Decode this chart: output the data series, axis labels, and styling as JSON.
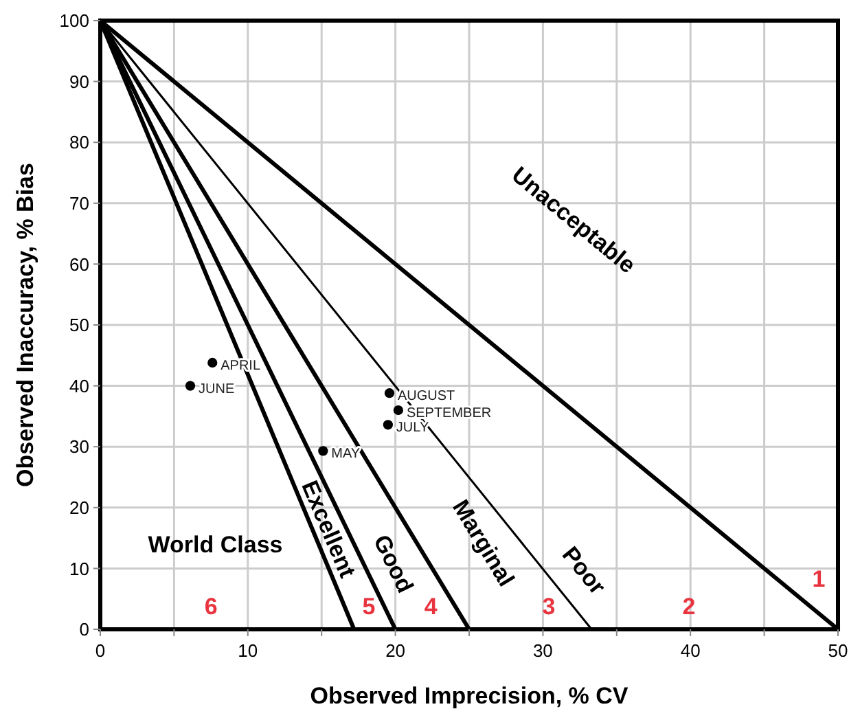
{
  "chart_data": {
    "type": "line",
    "xlabel": "Observed Imprecision, % CV",
    "ylabel": "Observed Inaccuracy, % Bias",
    "xlim": [
      0,
      50
    ],
    "ylim": [
      0,
      100
    ],
    "xticks": [
      0,
      10,
      20,
      30,
      40,
      50
    ],
    "yticks": [
      0,
      10,
      20,
      30,
      40,
      50,
      60,
      70,
      80,
      90,
      100
    ],
    "grid": true,
    "series": [
      {
        "type": "line",
        "color": "#000000",
        "x": [
          0,
          50
        ],
        "values": [
          100,
          0
        ]
      },
      {
        "type": "line",
        "color": "#000000",
        "x": [
          0,
          33.3
        ],
        "values": [
          100,
          0
        ]
      },
      {
        "type": "line",
        "color": "#000000",
        "x": [
          0,
          25
        ],
        "values": [
          100,
          0
        ]
      },
      {
        "type": "line",
        "color": "#000000",
        "x": [
          0,
          20
        ],
        "values": [
          100,
          0
        ]
      },
      {
        "type": "line",
        "color": "#000000",
        "x": [
          0,
          17.2
        ],
        "values": [
          100,
          0
        ]
      },
      {
        "type": "scatter",
        "color": "#000000",
        "marker": "circle",
        "x": [
          7.6,
          6.1,
          19.6,
          20.2,
          19.5,
          15.1
        ],
        "values": [
          43.8,
          40,
          38.8,
          36,
          33.6,
          29.3
        ]
      }
    ],
    "annotations": [
      {
        "text": "APRIL",
        "x": 7.6,
        "y": 43.8
      },
      {
        "text": "JUNE",
        "x": 6.1,
        "y": 40
      },
      {
        "text": "AUGUST",
        "x": 19.6,
        "y": 38.8
      },
      {
        "text": "SEPTEMBER",
        "x": 20.2,
        "y": 36
      },
      {
        "text": "JULY",
        "x": 19.5,
        "y": 33.6
      },
      {
        "text": "MAY",
        "x": 15.1,
        "y": 29.3
      },
      "Unacceptable",
      "Poor",
      "Marginal",
      "Good",
      "Excellent",
      "World Class",
      "1",
      "2",
      "3",
      "4",
      "5",
      "6"
    ]
  }
}
